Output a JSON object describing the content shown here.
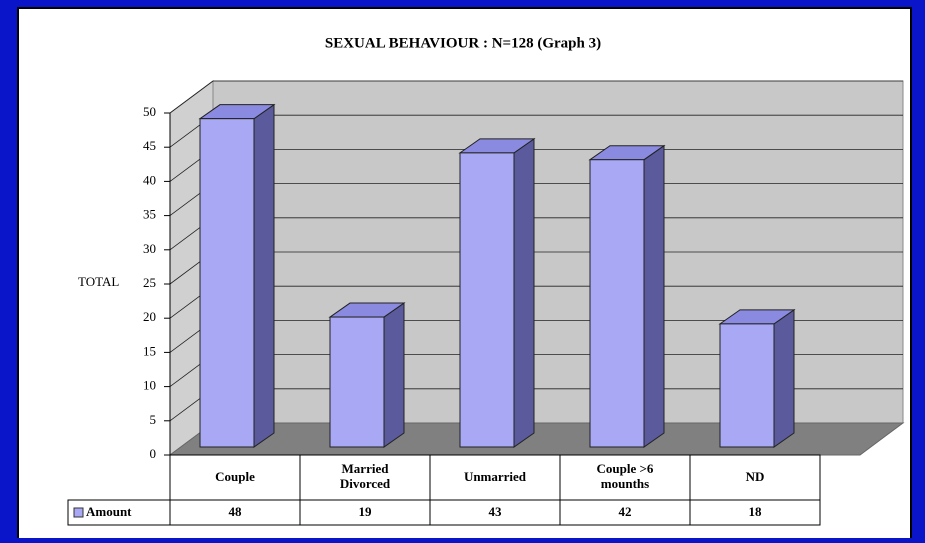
{
  "chart_data": {
    "type": "bar",
    "title": "SEXUAL BEHAVIOUR : N=128 (Graph 3)",
    "y_label": "TOTAL",
    "categories": [
      "Couple",
      "Married Divorced",
      "Unmarried",
      "Couple >6 mounths",
      "ND"
    ],
    "series": [
      {
        "name": "Amount",
        "color": "#a8a8f4",
        "values": [
          48,
          19,
          43,
          42,
          18
        ]
      }
    ],
    "ylim": [
      0,
      50
    ],
    "yticks": [
      0,
      5,
      10,
      15,
      20,
      25,
      30,
      35,
      40,
      45,
      50
    ],
    "grid": true
  }
}
